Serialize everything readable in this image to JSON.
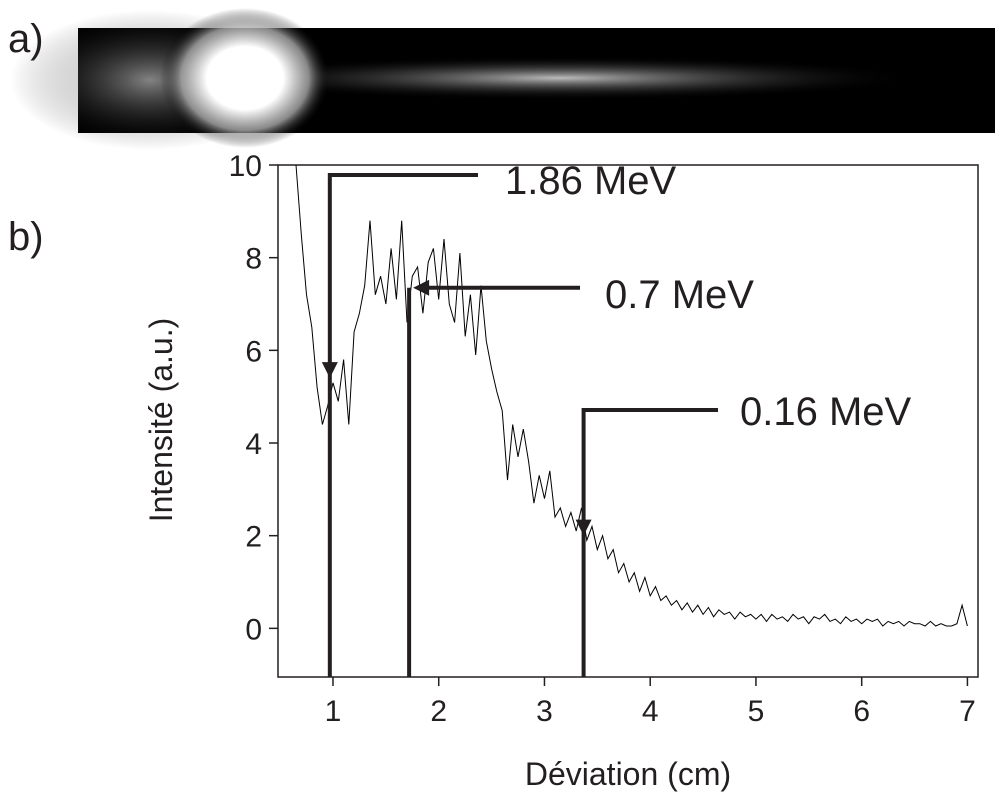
{
  "chart_data": {
    "type": "line",
    "panel_labels": [
      "a)",
      "b)"
    ],
    "x_label": "Déviation (cm)",
    "y_label": "Intensité (a.u.)",
    "xlim": [
      0.48,
      7.1
    ],
    "ylim": [
      -1.05,
      10
    ],
    "xticks": [
      1,
      2,
      3,
      4,
      5,
      6,
      7
    ],
    "yticks": [
      0,
      2,
      4,
      6,
      8,
      10
    ],
    "x": [
      0.65,
      0.7,
      0.75,
      0.8,
      0.85,
      0.9,
      0.95,
      1,
      1.05,
      1.1,
      1.15,
      1.2,
      1.25,
      1.3,
      1.35,
      1.4,
      1.45,
      1.5,
      1.55,
      1.6,
      1.65,
      1.7,
      1.75,
      1.8,
      1.85,
      1.9,
      1.95,
      2,
      2.05,
      2.1,
      2.15,
      2.2,
      2.25,
      2.3,
      2.35,
      2.4,
      2.45,
      2.5,
      2.55,
      2.6,
      2.65,
      2.7,
      2.75,
      2.8,
      2.85,
      2.9,
      2.95,
      3,
      3.05,
      3.1,
      3.15,
      3.2,
      3.25,
      3.3,
      3.35,
      3.4,
      3.45,
      3.5,
      3.55,
      3.6,
      3.65,
      3.7,
      3.75,
      3.8,
      3.85,
      3.9,
      3.95,
      4,
      4.05,
      4.1,
      4.15,
      4.2,
      4.25,
      4.3,
      4.35,
      4.4,
      4.45,
      4.5,
      4.55,
      4.6,
      4.65,
      4.7,
      4.75,
      4.8,
      4.85,
      4.9,
      4.95,
      5,
      5.05,
      5.1,
      5.15,
      5.2,
      5.25,
      5.3,
      5.35,
      5.4,
      5.45,
      5.5,
      5.55,
      5.6,
      5.65,
      5.7,
      5.75,
      5.8,
      5.85,
      5.9,
      5.95,
      6,
      6.05,
      6.1,
      6.15,
      6.2,
      6.25,
      6.3,
      6.35,
      6.4,
      6.45,
      6.5,
      6.55,
      6.6,
      6.65,
      6.7,
      6.75,
      6.8,
      6.85,
      6.9,
      6.95,
      7
    ],
    "series": [
      {
        "color": "#000000",
        "values": [
          10,
          8.5,
          7.2,
          6.5,
          5.2,
          4.4,
          4.8,
          5.3,
          4.9,
          5.8,
          4.4,
          6.4,
          6.8,
          7.4,
          8.8,
          7.2,
          7.6,
          7,
          8.2,
          7.1,
          8.8,
          6.6,
          7.6,
          7.8,
          6.8,
          7.9,
          8.2,
          7.1,
          8.4,
          7,
          6.6,
          8.1,
          6.3,
          7.2,
          5.9,
          7.4,
          6.2,
          5.6,
          5.1,
          4.7,
          3.2,
          4.4,
          3.7,
          4.3,
          3.6,
          2.7,
          3.3,
          2.8,
          3.4,
          2.4,
          2.6,
          2.2,
          2.5,
          2.1,
          2.6,
          1.9,
          2.2,
          1.7,
          2,
          1.5,
          1.7,
          1.2,
          1.4,
          1,
          1.2,
          0.8,
          1.1,
          0.7,
          0.9,
          0.6,
          0.7,
          0.5,
          0.6,
          0.4,
          0.55,
          0.35,
          0.5,
          0.3,
          0.45,
          0.25,
          0.4,
          0.3,
          0.35,
          0.2,
          0.35,
          0.25,
          0.3,
          0.2,
          0.3,
          0.15,
          0.3,
          0.2,
          0.25,
          0.15,
          0.3,
          0.2,
          0.25,
          0.1,
          0.25,
          0.2,
          0.3,
          0.15,
          0.2,
          0.1,
          0.25,
          0.15,
          0.2,
          0.1,
          0.2,
          0.15,
          0.2,
          0.05,
          0.15,
          0.1,
          0.15,
          0.05,
          0.15,
          0.1,
          0.1,
          0.05,
          0.15,
          0.05,
          0.1,
          0.05,
          0.05,
          0.1,
          0.5,
          0.05
        ]
      }
    ],
    "annotations": [
      {
        "text": "1.86 MeV",
        "x": 0.97,
        "y": 5.4
      },
      {
        "text": "0.7 MeV",
        "x": 1.72,
        "y": 7.35
      },
      {
        "text": "0.16 MeV",
        "x": 3.37,
        "y": 2.0
      }
    ]
  }
}
